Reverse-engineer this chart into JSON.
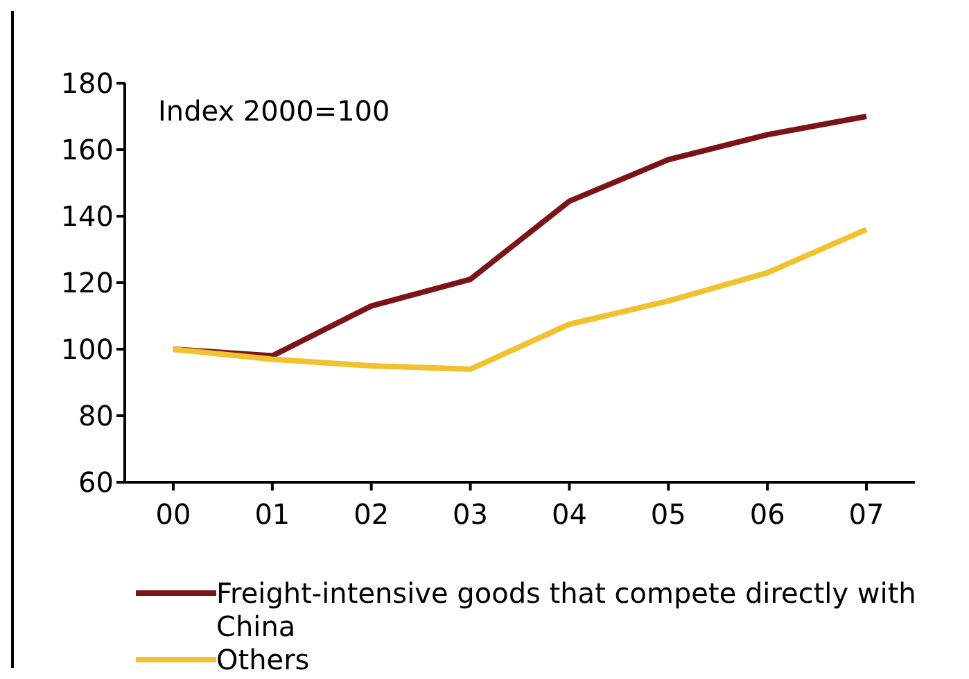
{
  "chart_data": {
    "type": "line",
    "annotations": [
      "Index 2000=100"
    ],
    "categories": [
      "00",
      "01",
      "02",
      "03",
      "04",
      "05",
      "06",
      "07"
    ],
    "series": [
      {
        "name": "Freight-intensive goods that compete directly with China",
        "color": "#7b1416",
        "values": [
          100,
          98,
          113,
          121,
          144.5,
          157,
          164.5,
          170
        ]
      },
      {
        "name": "Others",
        "color": "#f2c12e",
        "values": [
          100,
          97,
          95,
          94,
          107.5,
          114.5,
          123,
          136
        ]
      }
    ],
    "ylim": [
      60,
      180
    ],
    "yticks": [
      60,
      80,
      100,
      120,
      140,
      160,
      180
    ],
    "grid": false,
    "legend": "bottom",
    "marker": "none",
    "line_style": "solid"
  }
}
